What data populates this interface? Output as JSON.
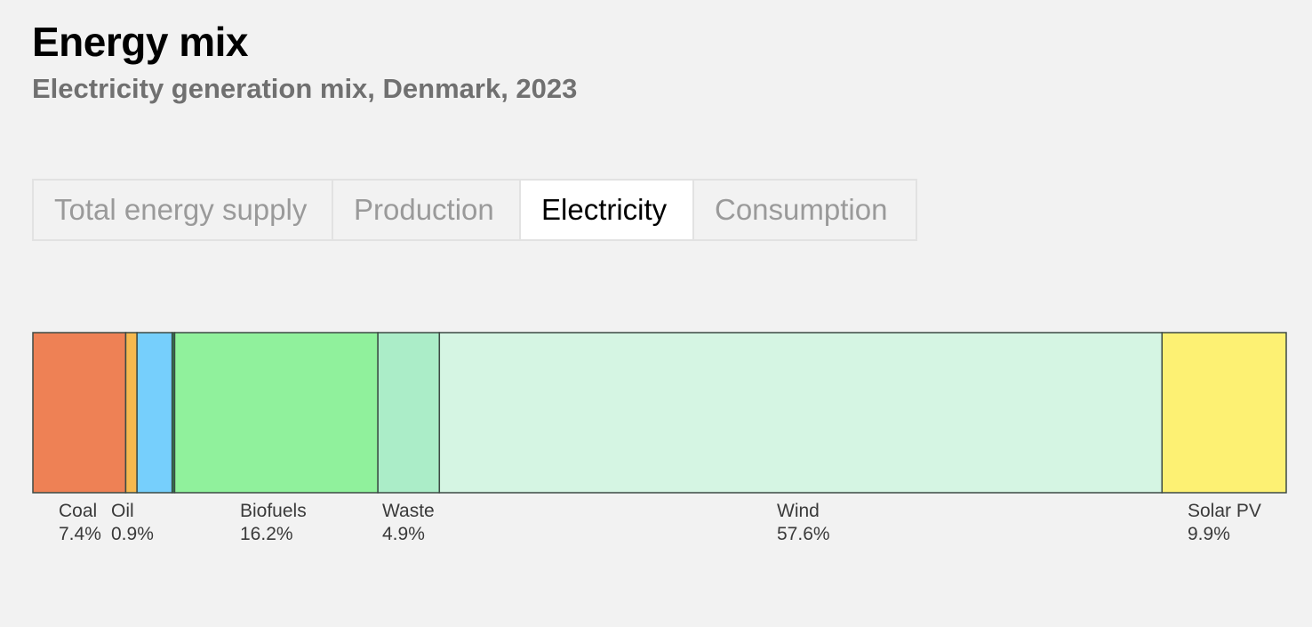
{
  "header": {
    "title": "Energy mix",
    "subtitle": "Electricity generation mix, Denmark, 2023"
  },
  "tabs": [
    {
      "label": "Total energy supply",
      "active": false
    },
    {
      "label": "Production",
      "active": false
    },
    {
      "label": "Electricity",
      "active": true
    },
    {
      "label": "Consumption",
      "active": false
    }
  ],
  "chart_data": {
    "type": "bar",
    "orientation": "horizontal-stacked",
    "unit": "%",
    "segments": [
      {
        "name": "Coal",
        "value": 7.4,
        "label": "7.4%",
        "color": "#ee8155",
        "show_label": true
      },
      {
        "name": "Oil",
        "value": 0.9,
        "label": "0.9%",
        "color": "#f6b94f",
        "show_label": true
      },
      {
        "name": "",
        "value": 2.8,
        "label": "",
        "color": "#76cffc",
        "show_label": false
      },
      {
        "name": "",
        "value": 0.2,
        "label": "",
        "color": "#2e7d4f",
        "show_label": false
      },
      {
        "name": "Biofuels",
        "value": 16.2,
        "label": "16.2%",
        "color": "#90f19c",
        "show_label": true
      },
      {
        "name": "Waste",
        "value": 4.9,
        "label": "4.9%",
        "color": "#abedc8",
        "show_label": true
      },
      {
        "name": "Wind",
        "value": 57.6,
        "label": "57.6%",
        "color": "#d5f5e3",
        "show_label": true
      },
      {
        "name": "Solar PV",
        "value": 9.9,
        "label": "9.9%",
        "color": "#fdf173",
        "show_label": true
      }
    ]
  }
}
